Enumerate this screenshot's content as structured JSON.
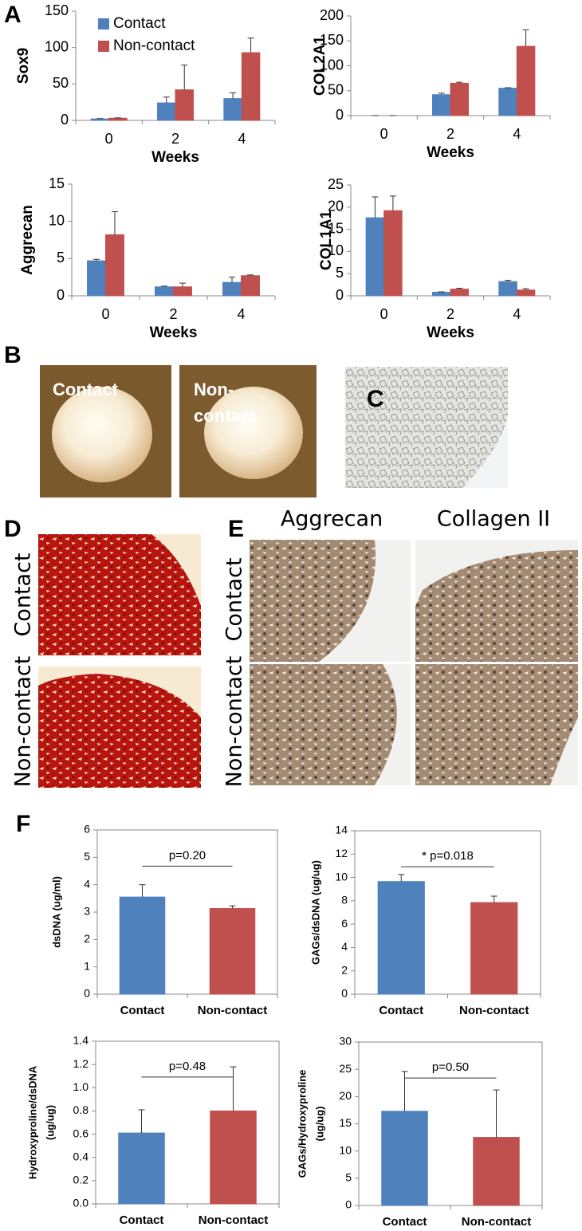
{
  "panel_labels": [
    "A",
    "B",
    "C",
    "D",
    "E",
    "F"
  ],
  "image_labels": {
    "B_contact": "Contact",
    "B_noncontact": [
      "Non-",
      "contact"
    ],
    "D_rows": [
      "Contact",
      "Non-contact"
    ],
    "E_columns": [
      "Aggrecan",
      "Collagen II"
    ],
    "E_rows": [
      "Contact",
      "Non-contact"
    ]
  },
  "chart_data": [
    {
      "type": "bar",
      "ylabel": "Sox9",
      "xlabel": "Weeks",
      "categories": [
        "0",
        "2",
        "4"
      ],
      "legend": "upper left",
      "ylim": [
        0,
        150
      ],
      "yticks": [
        0,
        50,
        100,
        150
      ],
      "series": [
        {
          "name": "Contact",
          "color": "#4f81bd",
          "values": [
            2,
            24,
            30
          ],
          "errors": [
            0.5,
            8,
            8
          ]
        },
        {
          "name": "Non-contact",
          "color": "#c0504d",
          "values": [
            3,
            42,
            93
          ],
          "errors": [
            0.5,
            34,
            20
          ]
        }
      ]
    },
    {
      "type": "bar",
      "ylabel": "COL2A1",
      "xlabel": "Weeks",
      "categories": [
        "0",
        "2",
        "4"
      ],
      "ylim": [
        0,
        200
      ],
      "yticks": [
        0,
        50,
        100,
        150,
        200
      ],
      "series": [
        {
          "color": "#4f81bd",
          "values": [
            0,
            42,
            55
          ],
          "errors": [
            0,
            3,
            1
          ]
        },
        {
          "color": "#c0504d",
          "values": [
            0,
            65,
            139
          ],
          "errors": [
            0,
            2,
            33
          ]
        }
      ]
    },
    {
      "type": "bar",
      "ylabel": "Aggrecan",
      "xlabel": "Weeks",
      "categories": [
        "0",
        "2",
        "4"
      ],
      "ylim": [
        0,
        15
      ],
      "yticks": [
        0,
        5,
        10,
        15
      ],
      "series": [
        {
          "color": "#4f81bd",
          "values": [
            4.7,
            1.2,
            1.8
          ],
          "errors": [
            0.2,
            0.1,
            0.7
          ]
        },
        {
          "color": "#c0504d",
          "values": [
            8.2,
            1.2,
            2.7
          ],
          "errors": [
            3.1,
            0.5,
            0.1
          ]
        }
      ]
    },
    {
      "type": "bar",
      "ylabel": "COL1A1",
      "xlabel": "Weeks",
      "categories": [
        "0",
        "2",
        "4"
      ],
      "ylim": [
        0,
        25
      ],
      "yticks": [
        0,
        5,
        10,
        15,
        20,
        25
      ],
      "series": [
        {
          "color": "#4f81bd",
          "values": [
            17.6,
            0.8,
            3.2
          ],
          "errors": [
            4.7,
            0.1,
            0.3
          ]
        },
        {
          "color": "#c0504d",
          "values": [
            19.2,
            1.5,
            1.3
          ],
          "errors": [
            3.3,
            0.2,
            0.3
          ]
        }
      ]
    },
    {
      "type": "bar",
      "ylabel": "dsDNA  (ug/ml)",
      "categories": [
        "Contact",
        "Non-contact"
      ],
      "annotation": "p=0.20",
      "ylim": [
        0,
        6
      ],
      "yticks": [
        0,
        1,
        2,
        3,
        4,
        5,
        6
      ],
      "values": [
        3.55,
        3.13
      ],
      "errors": [
        0.45,
        0.1
      ],
      "colors": [
        "#4f81bd",
        "#c0504d"
      ]
    },
    {
      "type": "bar",
      "ylabel": "GAGs/dsDNA  (ug/ug)",
      "categories": [
        "Contact",
        "Non-contact"
      ],
      "annotation": "* p=0.018",
      "ylim": [
        0,
        14
      ],
      "yticks": [
        0,
        2,
        4,
        6,
        8,
        10,
        12,
        14
      ],
      "values": [
        9.65,
        7.85
      ],
      "errors": [
        0.6,
        0.55
      ],
      "colors": [
        "#4f81bd",
        "#c0504d"
      ]
    },
    {
      "type": "bar",
      "ylabel": [
        "Hydroxyproline/dsDNA",
        "(ug/ug)"
      ],
      "categories": [
        "Contact",
        "Non-contact"
      ],
      "annotation": "p=0.48",
      "ylim": [
        0,
        1.4
      ],
      "yticks": [
        {
          "value": 0,
          "label": "0.0"
        },
        0.2,
        0.4,
        0.6,
        0.8,
        {
          "value": 1,
          "label": "1.0"
        },
        1.2,
        1.4
      ],
      "values": [
        0.61,
        0.8
      ],
      "errors": [
        0.2,
        0.38
      ],
      "colors": [
        "#4f81bd",
        "#c0504d"
      ]
    },
    {
      "type": "bar",
      "ylabel": [
        "GAGs/Hydroxyproline",
        "(ug/ug)"
      ],
      "categories": [
        "Contact",
        "Non-contact"
      ],
      "annotation": "p=0.50",
      "ylim": [
        0,
        30
      ],
      "yticks": [
        0,
        5,
        10,
        15,
        20,
        25,
        30
      ],
      "values": [
        17.3,
        12.5
      ],
      "errors": [
        7.3,
        8.7
      ],
      "colors": [
        "#4f81bd",
        "#c0504d"
      ]
    }
  ]
}
